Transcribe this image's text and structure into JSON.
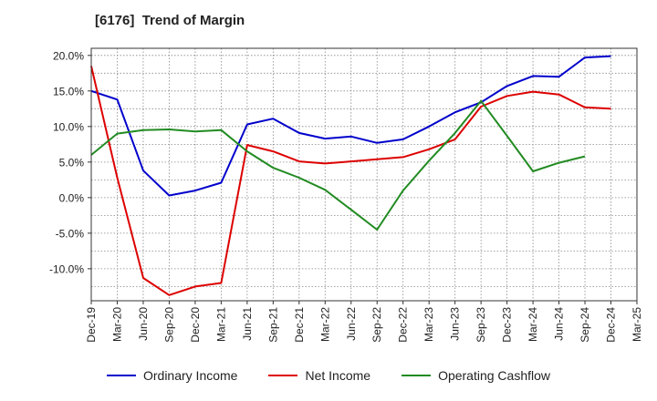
{
  "chart_data": {
    "type": "line",
    "title": "[6176]  Trend of Margin",
    "xlabel": "",
    "ylabel": "",
    "ylim": [
      -14.5,
      21
    ],
    "y_ticks": [
      20,
      15,
      10,
      5,
      0,
      -5,
      -10
    ],
    "y_tick_labels": [
      "20.0%",
      "15.0%",
      "10.0%",
      "5.0%",
      "0.0%",
      "-5.0%",
      "-10.0%"
    ],
    "categories": [
      "Dec-19",
      "Mar-20",
      "Jun-20",
      "Sep-20",
      "Dec-20",
      "Mar-21",
      "Jun-21",
      "Sep-21",
      "Dec-21",
      "Mar-22",
      "Jun-22",
      "Sep-22",
      "Dec-22",
      "Mar-23",
      "Jun-23",
      "Sep-23",
      "Dec-23",
      "Mar-24",
      "Jun-24",
      "Sep-24",
      "Dec-24",
      "Mar-25"
    ],
    "grid": true,
    "legend_position": "bottom",
    "series": [
      {
        "name": "Ordinary Income",
        "color": "#0000cc",
        "values": [
          15.0,
          13.8,
          3.8,
          0.3,
          1.0,
          2.1,
          10.3,
          11.1,
          9.1,
          8.3,
          8.6,
          7.7,
          8.2,
          10.0,
          12.0,
          13.4,
          15.7,
          17.1,
          17.0,
          19.7,
          19.9,
          null
        ]
      },
      {
        "name": "Net Income",
        "color": "#dd0000",
        "values": [
          18.5,
          2.8,
          -11.3,
          -13.7,
          -12.5,
          -12.0,
          7.4,
          6.5,
          5.1,
          4.8,
          5.1,
          5.4,
          5.7,
          6.8,
          8.2,
          12.8,
          14.3,
          14.9,
          14.5,
          12.7,
          12.5,
          null
        ]
      },
      {
        "name": "Operating Cashflow",
        "color": "#228b22",
        "values": [
          6.0,
          9.0,
          9.5,
          9.6,
          9.3,
          9.5,
          6.5,
          4.2,
          2.8,
          1.1,
          -1.7,
          -4.5,
          1.0,
          5.2,
          9.1,
          13.6,
          8.7,
          3.7,
          4.9,
          5.8,
          null,
          null
        ]
      }
    ]
  }
}
